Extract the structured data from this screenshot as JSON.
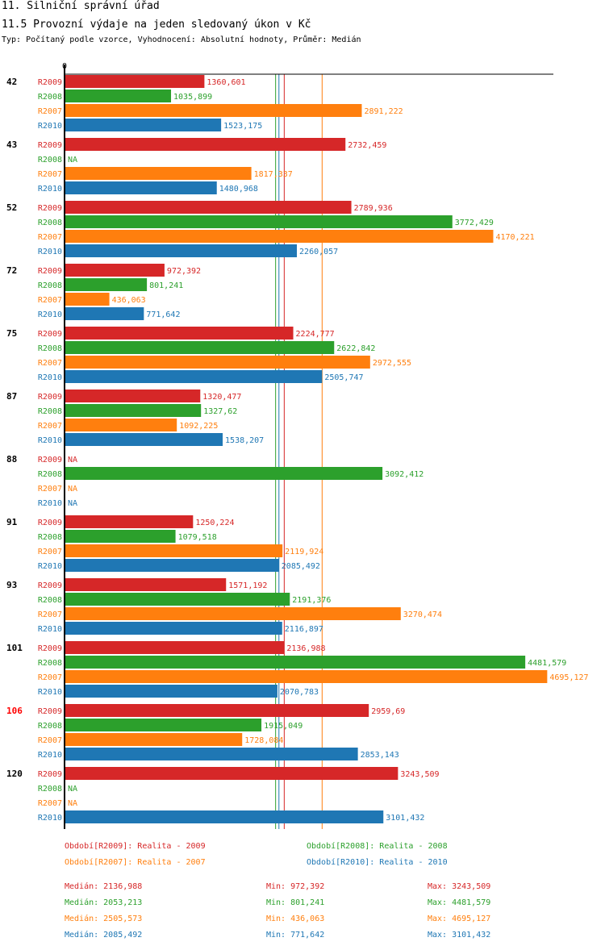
{
  "header": {
    "title": "11. Silniční správní úřad",
    "subtitle": "11.5 Provozní výdaje na jeden sledovaný úkon v Kč",
    "meta": "Typ: Počítaný podle vzorce, Vyhodnocení: Absolutní hodnoty, Průměr: Medián"
  },
  "colors": {
    "R2009": "#d62728",
    "R2008": "#2ca02c",
    "R2007": "#ff7f0e",
    "R2010": "#1f77b4",
    "highlight": "#ff0000"
  },
  "chart_data": {
    "type": "bar",
    "orientation": "horizontal",
    "axis_zero_label": "0",
    "xlim": [
      0,
      4755
    ],
    "na_label": "NA",
    "series_order": [
      "R2009",
      "R2008",
      "R2007",
      "R2010"
    ],
    "highlight_group": "106",
    "groups": [
      {
        "id": "42",
        "values": {
          "R2009": "1360,601",
          "R2008": "1035,899",
          "R2007": "2891,222",
          "R2010": "1523,175"
        }
      },
      {
        "id": "43",
        "values": {
          "R2009": "2732,459",
          "R2008": null,
          "R2007": "1817,337",
          "R2010": "1480,968"
        }
      },
      {
        "id": "52",
        "values": {
          "R2009": "2789,936",
          "R2008": "3772,429",
          "R2007": "4170,221",
          "R2010": "2260,057"
        }
      },
      {
        "id": "72",
        "values": {
          "R2009": "972,392",
          "R2008": "801,241",
          "R2007": "436,063",
          "R2010": "771,642"
        }
      },
      {
        "id": "75",
        "values": {
          "R2009": "2224,777",
          "R2008": "2622,842",
          "R2007": "2972,555",
          "R2010": "2505,747"
        }
      },
      {
        "id": "87",
        "values": {
          "R2009": "1320,477",
          "R2008": "1327,62",
          "R2007": "1092,225",
          "R2010": "1538,207"
        }
      },
      {
        "id": "88",
        "values": {
          "R2009": null,
          "R2008": "3092,412",
          "R2007": null,
          "R2010": null
        }
      },
      {
        "id": "91",
        "values": {
          "R2009": "1250,224",
          "R2008": "1079,518",
          "R2007": "2119,924",
          "R2010": "2085,492"
        }
      },
      {
        "id": "93",
        "values": {
          "R2009": "1571,192",
          "R2008": "2191,376",
          "R2007": "3270,474",
          "R2010": "2116,897"
        }
      },
      {
        "id": "101",
        "values": {
          "R2009": "2136,988",
          "R2008": "4481,579",
          "R2007": "4695,127",
          "R2010": "2070,783"
        }
      },
      {
        "id": "106",
        "values": {
          "R2009": "2959,69",
          "R2008": "1915,049",
          "R2007": "1728,084",
          "R2010": "2853,143"
        }
      },
      {
        "id": "120",
        "values": {
          "R2009": "3243,509",
          "R2008": null,
          "R2007": null,
          "R2010": "3101,432"
        }
      }
    ],
    "median_lines": {
      "R2009": 2136.988,
      "R2008": 2053.213,
      "R2007": 2505.573,
      "R2010": 2085.492
    }
  },
  "legend": {
    "R2009": "Období[R2009]: Realita - 2009",
    "R2008": "Období[R2008]: Realita - 2008",
    "R2007": "Období[R2007]: Realita - 2007",
    "R2010": "Období[R2010]: Realita - 2010"
  },
  "stats": [
    {
      "series": "R2009",
      "median": "Medián: 2136,988",
      "min": "Min: 972,392",
      "max": "Max: 3243,509"
    },
    {
      "series": "R2008",
      "median": "Medián: 2053,213",
      "min": "Min: 801,241",
      "max": "Max: 4481,579"
    },
    {
      "series": "R2007",
      "median": "Medián: 2505,573",
      "min": "Min: 436,063",
      "max": "Max: 4695,127"
    },
    {
      "series": "R2010",
      "median": "Medián: 2085,492",
      "min": "Min: 771,642",
      "max": "Max: 3101,432"
    }
  ]
}
